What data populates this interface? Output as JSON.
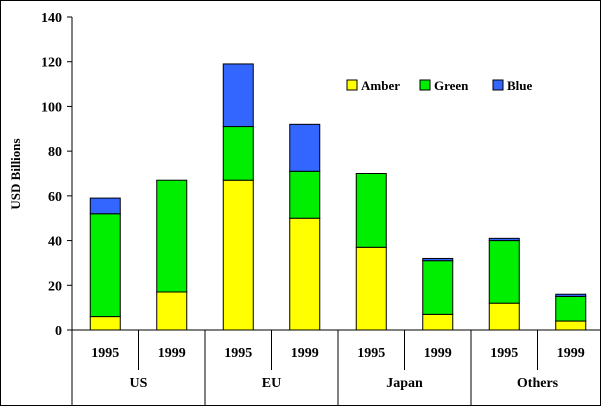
{
  "chart_data": {
    "type": "bar",
    "stacked": true,
    "title": "",
    "ylabel": "USD Billions",
    "xlabel": "",
    "ylim": [
      0,
      140
    ],
    "yticks": [
      0,
      20,
      40,
      60,
      80,
      100,
      120,
      140
    ],
    "grid": false,
    "legend_position": "top-right",
    "groups": [
      {
        "label": "US",
        "categories": [
          "1995",
          "1999"
        ]
      },
      {
        "label": "EU",
        "categories": [
          "1995",
          "1999"
        ]
      },
      {
        "label": "Japan",
        "categories": [
          "1995",
          "1999"
        ]
      },
      {
        "label": "Others",
        "categories": [
          "1995",
          "1999"
        ]
      }
    ],
    "categories": [
      "1995",
      "1999",
      "1995",
      "1999",
      "1995",
      "1999",
      "1995",
      "1999"
    ],
    "series": [
      {
        "name": "Amber",
        "color": "#ffff00",
        "values": [
          6,
          17,
          67,
          50,
          37,
          7,
          12,
          4
        ]
      },
      {
        "name": "Green",
        "color": "#00ee00",
        "values": [
          46,
          50,
          24,
          21,
          33,
          24,
          28,
          11
        ]
      },
      {
        "name": "Blue",
        "color": "#3366ff",
        "values": [
          7,
          0,
          28,
          21,
          0,
          1,
          1,
          1
        ]
      }
    ]
  }
}
